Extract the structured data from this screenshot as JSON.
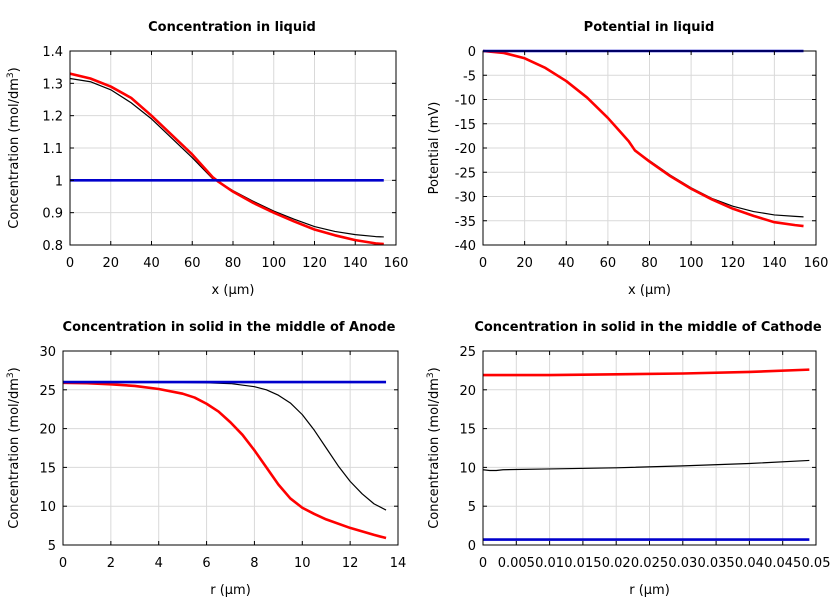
{
  "colors": {
    "red": "#ff0000",
    "blue": "#0000cc",
    "black": "#000000",
    "grid": "#d9d9d9"
  },
  "chart_data": [
    {
      "type": "line",
      "title": "Concentration in liquid",
      "xlabel": "x (µm)",
      "ylabel": "Concentration (mol/dm",
      "ylabel_sup": "3",
      "ylabel_end": ")",
      "xlim": [
        0,
        160
      ],
      "ylim": [
        0.8,
        1.4
      ],
      "xticks": [
        "0",
        "20",
        "40",
        "60",
        "80",
        "100",
        "120",
        "140",
        "160"
      ],
      "yticks": [
        "0.8",
        "0.9",
        "1",
        "1.1",
        "1.2",
        "1.3",
        "1.4"
      ],
      "grid": true,
      "series": [
        {
          "color": "black",
          "width": 1.2,
          "x": [
            0,
            10,
            20,
            30,
            40,
            50,
            60,
            70,
            73,
            80,
            90,
            100,
            110,
            120,
            130,
            140,
            150,
            154
          ],
          "y": [
            1.315,
            1.305,
            1.28,
            1.24,
            1.19,
            1.13,
            1.07,
            1.005,
            0.995,
            0.968,
            0.935,
            0.905,
            0.88,
            0.857,
            0.842,
            0.832,
            0.826,
            0.825
          ]
        },
        {
          "color": "red",
          "width": 2.6,
          "x": [
            0,
            10,
            20,
            30,
            40,
            50,
            60,
            70,
            73,
            80,
            90,
            100,
            110,
            120,
            130,
            140,
            150,
            154
          ],
          "y": [
            1.33,
            1.315,
            1.29,
            1.255,
            1.2,
            1.14,
            1.08,
            1.01,
            0.995,
            0.965,
            0.93,
            0.9,
            0.873,
            0.848,
            0.83,
            0.815,
            0.805,
            0.803
          ]
        },
        {
          "color": "blue",
          "width": 2.6,
          "x": [
            0,
            154
          ],
          "y": [
            1,
            1
          ]
        }
      ]
    },
    {
      "type": "line",
      "title": "Potential in liquid",
      "xlabel": "x (µm)",
      "ylabel": "Potential (mV)",
      "ylabel_sup": "",
      "ylabel_end": "",
      "xlim": [
        0,
        160
      ],
      "ylim": [
        -40,
        0
      ],
      "xticks": [
        "0",
        "20",
        "40",
        "60",
        "80",
        "100",
        "120",
        "140",
        "160"
      ],
      "yticks": [
        "-40",
        "-35",
        "-30",
        "-25",
        "-20",
        "-15",
        "-10",
        "-5",
        "0"
      ],
      "grid": true,
      "series": [
        {
          "color": "black",
          "width": 1.2,
          "x": [
            0,
            10,
            20,
            30,
            40,
            50,
            60,
            70,
            73,
            80,
            90,
            100,
            110,
            120,
            130,
            140,
            150,
            154
          ],
          "y": [
            0,
            -0.4,
            -1.5,
            -3.5,
            -6.2,
            -9.6,
            -13.8,
            -18.6,
            -20.5,
            -22.6,
            -25.6,
            -28.2,
            -30.4,
            -32.0,
            -33.1,
            -33.8,
            -34.1,
            -34.2
          ]
        },
        {
          "color": "red",
          "width": 2.6,
          "x": [
            0,
            10,
            20,
            30,
            40,
            50,
            60,
            70,
            73,
            80,
            90,
            100,
            110,
            120,
            130,
            140,
            150,
            154
          ],
          "y": [
            0,
            -0.4,
            -1.5,
            -3.5,
            -6.2,
            -9.6,
            -13.8,
            -18.6,
            -20.5,
            -22.8,
            -25.8,
            -28.4,
            -30.6,
            -32.5,
            -34.0,
            -35.3,
            -35.9,
            -36.1
          ]
        },
        {
          "color": "blue",
          "width": 2.6,
          "x": [
            0,
            154
          ],
          "y": [
            0,
            0
          ]
        }
      ]
    },
    {
      "type": "line",
      "title": "Concentration in solid in the middle of Anode",
      "xlabel": "r (µm)",
      "ylabel": "Concentration (mol/dm",
      "ylabel_sup": "3",
      "ylabel_end": ")",
      "xlim": [
        0,
        14
      ],
      "ylim": [
        5,
        30
      ],
      "xticks": [
        "0",
        "2",
        "4",
        "6",
        "8",
        "10",
        "12",
        "14"
      ],
      "yticks": [
        "5",
        "10",
        "15",
        "20",
        "25",
        "30"
      ],
      "grid": true,
      "series": [
        {
          "color": "black",
          "width": 1.2,
          "x": [
            0,
            2,
            4,
            6,
            7,
            8,
            8.5,
            9,
            9.5,
            10,
            10.5,
            11,
            11.5,
            12,
            12.5,
            13,
            13.5
          ],
          "y": [
            26,
            26,
            26,
            25.9,
            25.8,
            25.4,
            25.0,
            24.3,
            23.3,
            21.8,
            19.8,
            17.5,
            15.2,
            13.2,
            11.6,
            10.3,
            9.5
          ]
        },
        {
          "color": "red",
          "width": 2.6,
          "x": [
            0,
            1,
            2,
            3,
            4,
            5,
            5.5,
            6,
            6.5,
            7,
            7.5,
            8,
            8.5,
            9,
            9.5,
            10,
            10.5,
            11,
            12,
            13,
            13.5
          ],
          "y": [
            25.9,
            25.85,
            25.7,
            25.5,
            25.1,
            24.5,
            24.0,
            23.2,
            22.2,
            20.8,
            19.2,
            17.2,
            15.0,
            12.8,
            11.0,
            9.8,
            9.0,
            8.3,
            7.2,
            6.3,
            5.9
          ]
        },
        {
          "color": "blue",
          "width": 2.6,
          "x": [
            0,
            13.5
          ],
          "y": [
            26,
            26
          ]
        }
      ]
    },
    {
      "type": "line",
      "title": "Concentration in solid in the middle of Cathode",
      "xlabel": "r (µm)",
      "ylabel": "Concentration (mol/dm",
      "ylabel_sup": "3",
      "ylabel_end": ")",
      "xlim": [
        0,
        0.05
      ],
      "ylim": [
        0,
        25
      ],
      "xticks": [
        "0",
        "0.005",
        "0.01",
        "0.015",
        "0.02",
        "0.025",
        "0.03",
        "0.035",
        "0.04",
        "0.045",
        "0.05"
      ],
      "yticks": [
        "0",
        "5",
        "10",
        "15",
        "20",
        "25"
      ],
      "grid": true,
      "series": [
        {
          "color": "red",
          "width": 2.6,
          "x": [
            0,
            0.01,
            0.02,
            0.03,
            0.04,
            0.049
          ],
          "y": [
            21.9,
            21.9,
            22.0,
            22.1,
            22.3,
            22.6
          ]
        },
        {
          "color": "black",
          "width": 1.2,
          "x": [
            0,
            0.001,
            0.002,
            0.003,
            0.01,
            0.02,
            0.03,
            0.04,
            0.049
          ],
          "y": [
            9.7,
            9.6,
            9.6,
            9.7,
            9.8,
            9.95,
            10.2,
            10.5,
            10.9
          ]
        },
        {
          "color": "blue",
          "width": 2.6,
          "x": [
            0,
            0.049
          ],
          "y": [
            0.7,
            0.7
          ]
        }
      ]
    }
  ]
}
